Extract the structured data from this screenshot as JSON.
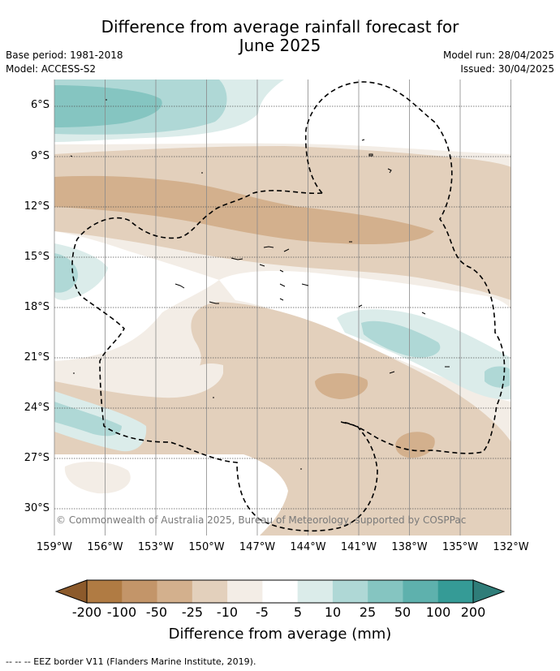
{
  "title": "Difference from average rainfall forecast for June 2025",
  "title_line1": "Difference from average rainfall forecast for",
  "title_line2": "June 2025",
  "base_period": "Base period: 1981-2018",
  "model": "Model: ACCESS-S2",
  "model_run": "Model run: 28/04/2025",
  "issued": "Issued: 30/04/2025",
  "lat_labels": [
    "6°S",
    "9°S",
    "12°S",
    "15°S",
    "18°S",
    "21°S",
    "24°S",
    "27°S",
    "30°S"
  ],
  "lon_labels": [
    "159°W",
    "156°W",
    "153°W",
    "150°W",
    "147°W",
    "144°W",
    "141°W",
    "138°W",
    "135°W",
    "132°W"
  ],
  "copyright": "© Commonwealth of Australia 2025, Bureau of Meteorology, supported by COSPPac",
  "colorbar": {
    "ticks": [
      "-200",
      "-100",
      "-50",
      "-25",
      "-10",
      "-5",
      "5",
      "10",
      "25",
      "50",
      "100",
      "200"
    ],
    "colors": [
      "#b07b43",
      "#c39569",
      "#d3b08d",
      "#e3d0bc",
      "#f3ede6",
      "#ffffff",
      "#dbecea",
      "#afd8d6",
      "#85c5c1",
      "#5eb1ad",
      "#359b96",
      "#2f7d79"
    ],
    "title": "Difference from average (mm)"
  },
  "legend_text": "--  --  -- EEZ border V11 (Flanders Marine Institute, 2019)."
}
